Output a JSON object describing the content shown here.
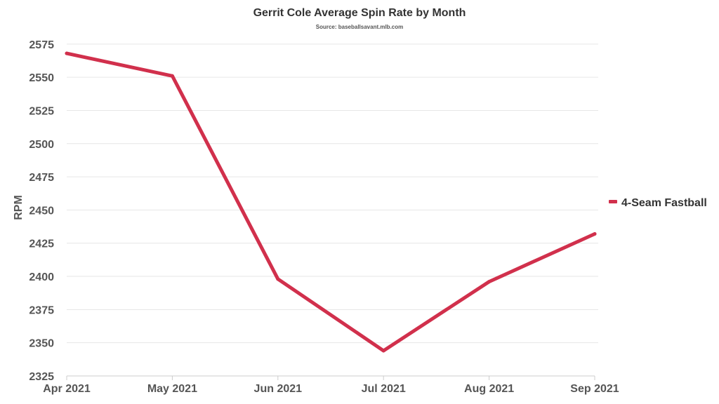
{
  "chart_data": {
    "type": "line",
    "title": "Gerrit Cole Average Spin Rate by Month",
    "subtitle": "Source: baseballsavant.mlb.com",
    "xlabel": "",
    "ylabel": "RPM",
    "categories": [
      "Apr 2021",
      "May 2021",
      "Jun 2021",
      "Jul 2021",
      "Aug 2021",
      "Sep 2021"
    ],
    "series": [
      {
        "name": "4-Seam Fastball",
        "values": [
          2568,
          2551,
          2398,
          2344,
          2396,
          2432
        ],
        "color": "#d1304c"
      }
    ],
    "ylim": [
      2325,
      2580
    ],
    "yticks": [
      2325,
      2350,
      2375,
      2400,
      2425,
      2450,
      2475,
      2500,
      2525,
      2550,
      2575
    ],
    "grid": true,
    "legend_position": "right"
  }
}
